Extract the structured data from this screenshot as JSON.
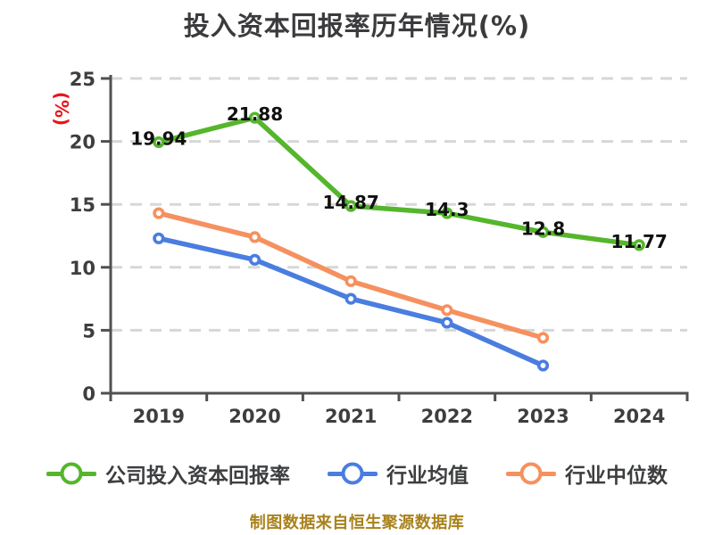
{
  "title": "投入资本回报率历年情况(%)",
  "chart_data": {
    "type": "line",
    "title": "投入资本回报率历年情况(%)",
    "ylabel": "(%)",
    "categories": [
      "2019",
      "2020",
      "2021",
      "2022",
      "2023",
      "2024"
    ],
    "ylim": [
      0,
      25
    ],
    "y_ticks": [
      0,
      5,
      10,
      15,
      20,
      25
    ],
    "grid": "horizontal-dashed",
    "legend_position": "bottom",
    "series": [
      {
        "name": "公司投入资本回报率",
        "color": "#55b62c",
        "values": [
          19.94,
          21.88,
          14.87,
          14.3,
          12.8,
          11.77
        ],
        "point_labels": [
          "19.94",
          "21.88",
          "14.87",
          "14.3",
          "12.8",
          "11.77"
        ]
      },
      {
        "name": "行业均值",
        "color": "#4a7de0",
        "values": [
          12.3,
          10.6,
          7.5,
          5.6,
          2.2,
          null
        ]
      },
      {
        "name": "行业中位数",
        "color": "#f5915f",
        "values": [
          14.3,
          12.4,
          8.9,
          6.6,
          4.4,
          null
        ]
      }
    ],
    "source_note": "制图数据来自恒生聚源数据库"
  },
  "colors": {
    "background": "#ffffff",
    "axis": "#4f5052",
    "grid": "#d7d7d7",
    "tick_label": "#3d3e40",
    "data_label": "#101010",
    "title": "#3b3b3d",
    "ylabel": "#e8141c",
    "source_note": "#a8821c",
    "marker_fill": "#ffffff"
  }
}
